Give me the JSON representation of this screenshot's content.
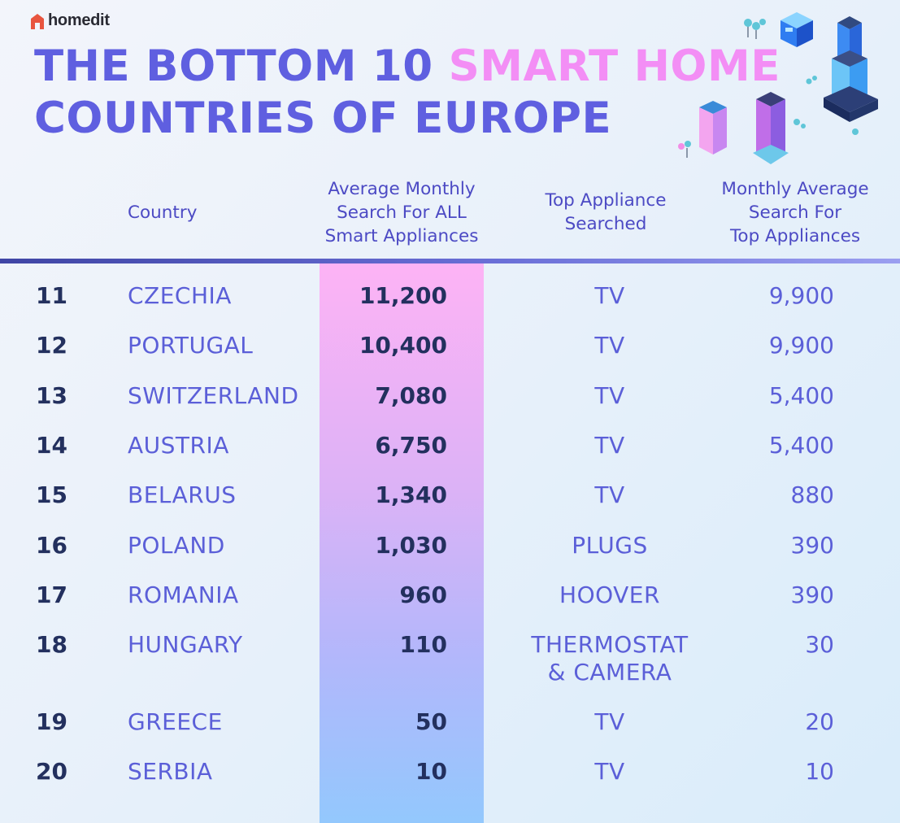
{
  "brand": {
    "name": "homedit",
    "accent": "#e8553f"
  },
  "title": {
    "line1_before": "THE BOTTOM 10 ",
    "line1_highlight": "SMART HOME",
    "line2": "COUNTRIES OF EUROPE",
    "color": "#5f5fe0",
    "highlight_color": "#f38ef5"
  },
  "headers": {
    "country": "Country",
    "avg_all": [
      "Average Monthly",
      "Search For ALL",
      "Smart Appliances"
    ],
    "top_appliance": [
      "Top Appliance",
      "Searched"
    ],
    "top_avg": [
      "Monthly Average",
      "Search For",
      "Top Appliances"
    ]
  },
  "rows": [
    {
      "rank": "11",
      "country": "CZECHIA",
      "avg_all": "11,200",
      "appliance": "TV",
      "appliance_line2": "",
      "top_avg": "9,900"
    },
    {
      "rank": "12",
      "country": "PORTUGAL",
      "avg_all": "10,400",
      "appliance": "TV",
      "appliance_line2": "",
      "top_avg": "9,900"
    },
    {
      "rank": "13",
      "country": "SWITZERLAND",
      "avg_all": "7,080",
      "appliance": "TV",
      "appliance_line2": "",
      "top_avg": "5,400"
    },
    {
      "rank": "14",
      "country": "AUSTRIA",
      "avg_all": "6,750",
      "appliance": "TV",
      "appliance_line2": "",
      "top_avg": "5,400"
    },
    {
      "rank": "15",
      "country": "BELARUS",
      "avg_all": "1,340",
      "appliance": "TV",
      "appliance_line2": "",
      "top_avg": "880"
    },
    {
      "rank": "16",
      "country": "POLAND",
      "avg_all": "1,030",
      "appliance": "PLUGS",
      "appliance_line2": "",
      "top_avg": "390"
    },
    {
      "rank": "17",
      "country": "ROMANIA",
      "avg_all": "960",
      "appliance": "HOOVER",
      "appliance_line2": "",
      "top_avg": "390"
    },
    {
      "rank": "18",
      "country": "HUNGARY",
      "avg_all": "110",
      "appliance": "THERMOSTAT",
      "appliance_line2": "& CAMERA",
      "top_avg": "30"
    },
    {
      "rank": "19",
      "country": "GREECE",
      "avg_all": "50",
      "appliance": "TV",
      "appliance_line2": "",
      "top_avg": "20"
    },
    {
      "rank": "20",
      "country": "SERBIA",
      "avg_all": "10",
      "appliance": "TV",
      "appliance_line2": "",
      "top_avg": "10"
    }
  ],
  "chart_data": {
    "type": "table",
    "columns": [
      "",
      "Country",
      "Average Monthly Search For ALL Smart Appliances",
      "Top Appliance Searched",
      "Monthly Average Search For Top Appliances"
    ],
    "ranks": [
      11,
      12,
      13,
      14,
      15,
      16,
      17,
      18,
      19,
      20
    ],
    "countries": [
      "CZECHIA",
      "PORTUGAL",
      "SWITZERLAND",
      "AUSTRIA",
      "BELARUS",
      "POLAND",
      "ROMANIA",
      "HUNGARY",
      "GREECE",
      "SERBIA"
    ],
    "avg_monthly_all": [
      11200,
      10400,
      7080,
      6750,
      1340,
      1030,
      960,
      110,
      50,
      10
    ],
    "top_appliance": [
      "TV",
      "TV",
      "TV",
      "TV",
      "TV",
      "PLUGS",
      "HOOVER",
      "THERMOSTAT & CAMERA",
      "TV",
      "TV"
    ],
    "avg_monthly_top": [
      9900,
      9900,
      5400,
      5400,
      880,
      390,
      390,
      30,
      20,
      10
    ]
  },
  "colors": {
    "country_text": "#5b5fd8",
    "number_text": "#23305e",
    "stripe_top": "#fdb3f5",
    "stripe_bottom": "#93c8fd",
    "divider": "#3f45a5"
  }
}
